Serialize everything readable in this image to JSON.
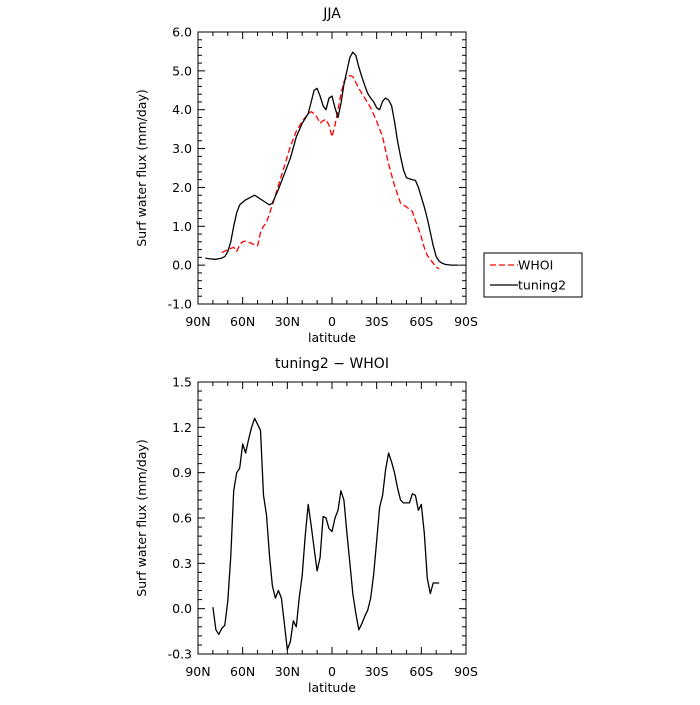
{
  "chart_data": [
    {
      "type": "line",
      "title": "JJA",
      "xlabel": "latitude",
      "ylabel": "Surf water flux (mm/day)",
      "xlim": [
        90,
        -90
      ],
      "ylim": [
        -1.0,
        6.0
      ],
      "x_ticks": [
        90,
        60,
        30,
        0,
        -30,
        -60,
        -90
      ],
      "x_tick_labels": [
        "90N",
        "60N",
        "30N",
        "0",
        "30S",
        "60S",
        "90S"
      ],
      "y_ticks": [
        -1.0,
        0.0,
        1.0,
        2.0,
        3.0,
        4.0,
        5.0,
        6.0
      ],
      "y_tick_labels": [
        "-1.0",
        "0.0",
        "1.0",
        "2.0",
        "3.0",
        "4.0",
        "5.0",
        "6.0"
      ],
      "legend_position": "outside-right",
      "series": [
        {
          "name": "WHOI",
          "color": "#ff0000",
          "dash": "dashed",
          "x": [
            74,
            70,
            66,
            64,
            62,
            60,
            58,
            54,
            52,
            50,
            48,
            46,
            44,
            40,
            36,
            32,
            28,
            24,
            20,
            16,
            14,
            12,
            10,
            8,
            6,
            4,
            2,
            0,
            -2,
            -4,
            -6,
            -8,
            -10,
            -12,
            -14,
            -16,
            -18,
            -20,
            -22,
            -26,
            -30,
            -34,
            -38,
            -42,
            -46,
            -50,
            -54,
            -56,
            -58,
            -60,
            -62,
            -64,
            -66,
            -68,
            -70,
            -72
          ],
          "y": [
            0.32,
            0.4,
            0.46,
            0.35,
            0.52,
            0.6,
            0.62,
            0.56,
            0.52,
            0.5,
            0.84,
            1.0,
            1.1,
            1.55,
            2.05,
            2.55,
            3.05,
            3.45,
            3.7,
            3.9,
            3.95,
            3.9,
            3.8,
            3.65,
            3.72,
            3.75,
            3.6,
            3.3,
            3.6,
            4.0,
            4.4,
            4.72,
            4.85,
            4.88,
            4.85,
            4.7,
            4.55,
            4.42,
            4.3,
            4.05,
            3.7,
            3.3,
            2.6,
            2.05,
            1.6,
            1.5,
            1.38,
            1.15,
            0.95,
            0.72,
            0.45,
            0.25,
            0.15,
            0.05,
            -0.05,
            -0.1
          ]
        },
        {
          "name": "tuning2",
          "color": "#000000",
          "dash": "solid",
          "x": [
            85,
            82,
            78,
            74,
            72,
            70,
            68,
            66,
            64,
            62,
            60,
            58,
            56,
            52,
            50,
            48,
            46,
            44,
            42,
            40,
            36,
            32,
            28,
            24,
            20,
            16,
            14,
            12,
            10,
            8,
            6,
            4,
            2,
            0,
            -2,
            -4,
            -6,
            -8,
            -10,
            -12,
            -14,
            -16,
            -18,
            -20,
            -22,
            -24,
            -26,
            -28,
            -30,
            -32,
            -34,
            -36,
            -38,
            -40,
            -42,
            -44,
            -46,
            -48,
            -50,
            -54,
            -56,
            -58,
            -60,
            -62,
            -64,
            -66,
            -68,
            -70,
            -72,
            -74,
            -76,
            -80,
            -85
          ],
          "y": [
            0.18,
            0.16,
            0.15,
            0.18,
            0.22,
            0.35,
            0.6,
            1.0,
            1.35,
            1.55,
            1.62,
            1.68,
            1.72,
            1.8,
            1.75,
            1.7,
            1.65,
            1.6,
            1.55,
            1.6,
            1.95,
            2.35,
            2.75,
            3.3,
            3.65,
            3.9,
            4.2,
            4.5,
            4.55,
            4.35,
            4.1,
            4.0,
            4.3,
            4.35,
            4.05,
            3.8,
            4.15,
            4.65,
            5.0,
            5.35,
            5.48,
            5.4,
            5.1,
            4.85,
            4.62,
            4.42,
            4.3,
            4.2,
            4.05,
            4.0,
            4.22,
            4.3,
            4.25,
            4.1,
            3.7,
            3.2,
            2.8,
            2.45,
            2.25,
            2.2,
            2.18,
            2.0,
            1.75,
            1.5,
            1.2,
            0.85,
            0.5,
            0.22,
            0.1,
            0.05,
            0.02,
            0.0,
            0.0
          ]
        }
      ]
    },
    {
      "type": "line",
      "title": "tuning2 − WHOI",
      "xlabel": "latitude",
      "ylabel": "Surf water flux (mm/day)",
      "xlim": [
        90,
        -90
      ],
      "ylim": [
        -0.3,
        1.5
      ],
      "x_ticks": [
        90,
        60,
        30,
        0,
        -30,
        -60,
        -90
      ],
      "x_tick_labels": [
        "90N",
        "60N",
        "30N",
        "0",
        "30S",
        "60S",
        "90S"
      ],
      "y_ticks": [
        -0.3,
        0.0,
        0.3,
        0.6,
        0.9,
        1.2,
        1.5
      ],
      "y_tick_labels": [
        "-0.3",
        "0.0",
        "0.3",
        "0.6",
        "0.9",
        "1.2",
        "1.5"
      ],
      "series": [
        {
          "name": "",
          "color": "#000000",
          "dash": "solid",
          "x": [
            80,
            78,
            76,
            74,
            72,
            70,
            68,
            66,
            64,
            62,
            60,
            58,
            56,
            54,
            52,
            50,
            48,
            46,
            44,
            42,
            40,
            38,
            36,
            34,
            32,
            30,
            28,
            26,
            24,
            22,
            20,
            18,
            16,
            14,
            12,
            10,
            8,
            6,
            4,
            2,
            0,
            -2,
            -4,
            -6,
            -8,
            -10,
            -12,
            -14,
            -16,
            -18,
            -20,
            -22,
            -24,
            -26,
            -28,
            -30,
            -32,
            -34,
            -36,
            -38,
            -40,
            -42,
            -44,
            -46,
            -48,
            -50,
            -52,
            -54,
            -56,
            -58,
            -60,
            -62,
            -64,
            -66,
            -68,
            -70,
            -72
          ],
          "y": [
            0.01,
            -0.14,
            -0.17,
            -0.13,
            -0.11,
            0.05,
            0.35,
            0.78,
            0.9,
            0.93,
            1.09,
            1.03,
            1.12,
            1.2,
            1.26,
            1.22,
            1.18,
            0.75,
            0.62,
            0.35,
            0.15,
            0.07,
            0.12,
            0.07,
            -0.1,
            -0.27,
            -0.22,
            -0.08,
            -0.12,
            0.07,
            0.22,
            0.48,
            0.69,
            0.55,
            0.4,
            0.25,
            0.34,
            0.61,
            0.6,
            0.53,
            0.51,
            0.6,
            0.65,
            0.78,
            0.72,
            0.5,
            0.3,
            0.1,
            -0.03,
            -0.14,
            -0.1,
            -0.05,
            -0.01,
            0.07,
            0.23,
            0.45,
            0.67,
            0.75,
            0.92,
            1.03,
            0.97,
            0.9,
            0.8,
            0.72,
            0.7,
            0.7,
            0.7,
            0.76,
            0.75,
            0.65,
            0.69,
            0.5,
            0.2,
            0.1,
            0.17,
            0.17,
            0.17
          ]
        }
      ]
    }
  ]
}
